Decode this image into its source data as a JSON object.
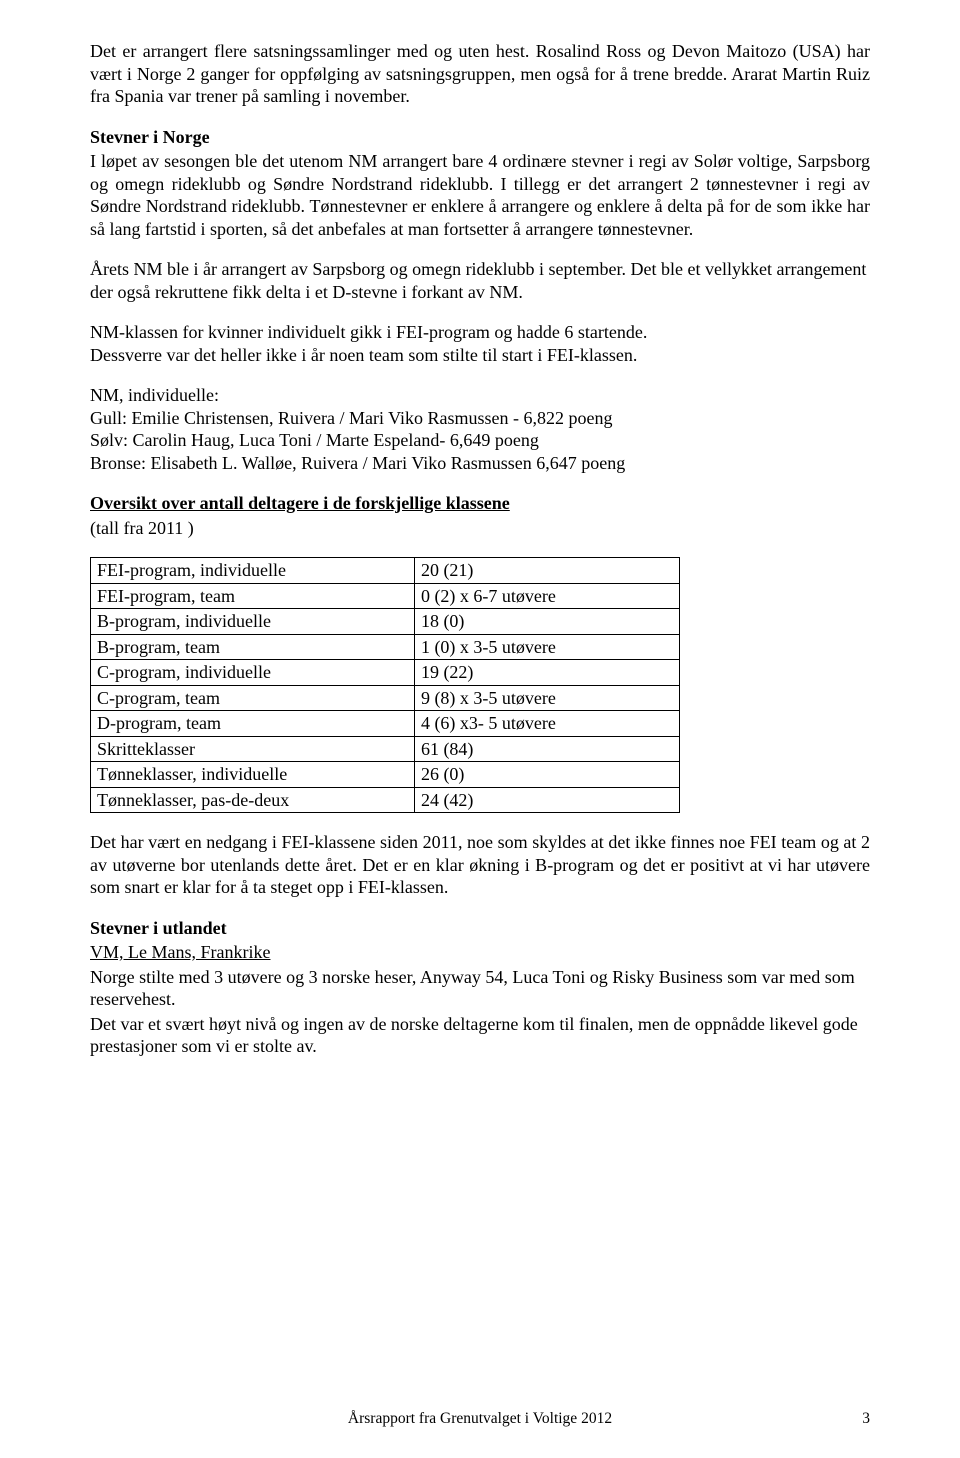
{
  "intro": {
    "p1": "Det er arrangert flere satsningssamlinger med og uten hest. Rosalind Ross og Devon Maitozo (USA)  har vært i Norge 2 ganger for oppfølging av satsningsgruppen, men også for å trene bredde. Ararat Martin Ruiz fra Spania var trener på samling i november."
  },
  "stevner_norge": {
    "heading": "Stevner i Norge",
    "p1": "I løpet av sesongen ble det utenom NM arrangert bare 4 ordinære stevner i regi av Solør voltige, Sarpsborg og omegn rideklubb og Søndre Nordstrand rideklubb. I tillegg er det arrangert 2 tønnestevner i regi av Søndre Nordstrand rideklubb. Tønnestevner er enklere å arrangere og enklere å delta på for de som ikke har så lang fartstid i sporten, så det anbefales at man fortsetter å arrangere tønnestevner.",
    "p2": "Årets NM ble i år arrangert av Sarpsborg og omegn rideklubb i september. Det ble et vellykket arrangement der også rekruttene fikk delta i et D-stevne i forkant av NM.",
    "p3a": "NM-klassen for kvinner individuelt gikk i FEI-program og hadde 6 startende.",
    "p3b": "Dessverre var det heller ikke i år noen team som stilte til start i FEI-klassen."
  },
  "nm": {
    "heading": "NM, individuelle:",
    "gull": "Gull: Emilie Christensen, Ruivera / Mari Viko Rasmussen   -  6,822 poeng",
    "solv": "Sølv: Carolin Haug, Luca Toni / Marte Espeland- 6,649 poeng",
    "bronse": "Bronse: Elisabeth L. Walløe, Ruivera / Mari Viko Rasmussen  6,647 poeng"
  },
  "oversikt": {
    "heading": "Oversikt over antall deltagere i de forskjellige klassene",
    "sub": "(tall fra 2011 )",
    "rows": [
      {
        "k": "FEI-program, individuelle",
        "v": "20 (21)"
      },
      {
        "k": "FEI-program, team",
        "v": "0 (2) x 6-7 utøvere"
      },
      {
        "k": "B-program, individuelle",
        "v": "18 (0)"
      },
      {
        "k": "B-program, team",
        "v": "1  (0) x 3-5 utøvere"
      },
      {
        "k": "C-program, individuelle",
        "v": "19 (22)"
      },
      {
        "k": "C-program, team",
        "v": "9 (8) x 3-5 utøvere"
      },
      {
        "k": "D-program, team",
        "v": "4 (6) x3- 5 utøvere"
      },
      {
        "k": "Skritteklasser",
        "v": "61 (84)"
      },
      {
        "k": "Tønneklasser, individuelle",
        "v": "26 (0)"
      },
      {
        "k": "Tønneklasser, pas-de-deux",
        "v": "24  (42)"
      }
    ]
  },
  "after_table": {
    "p": "Det har vært en nedgang i FEI-klassene siden 2011, noe som skyldes at det ikke finnes noe FEI team og at 2 av utøverne bor utenlands dette året. Det er en klar økning i B-program og det er positivt at vi har utøvere som snart er klar for å ta steget opp i FEI-klassen."
  },
  "utlandet": {
    "heading": "Stevner i utlandet",
    "sub": "VM, Le Mans, Frankrike",
    "p1": "Norge stilte med 3 utøvere og 3 norske heser, Anyway 54, Luca Toni og Risky Business som var med som reservehest.",
    "p2": "Det var et svært høyt nivå og ingen av de norske deltagerne kom til finalen, men de oppnådde likevel gode prestasjoner som vi er stolte av."
  },
  "footer": {
    "text": "Årsrapport fra Grenutvalget i Voltige 2012",
    "page": "3"
  }
}
